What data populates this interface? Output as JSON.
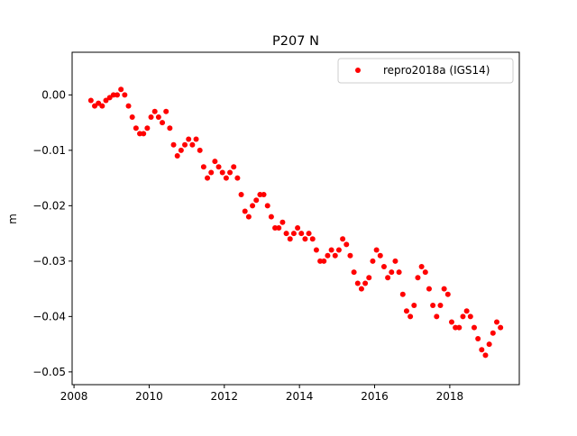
{
  "chart_data": {
    "type": "scatter",
    "title": "P207 N",
    "xlabel": "",
    "ylabel": "m",
    "xlim": [
      2007.95,
      2019.85
    ],
    "ylim": [
      -0.0523,
      0.0077
    ],
    "x_ticks": [
      "2008",
      "2010",
      "2012",
      "2014",
      "2016",
      "2018"
    ],
    "y_ticks": [
      "0.00",
      "−0.01",
      "−0.02",
      "−0.03",
      "−0.04",
      "−0.05"
    ],
    "grid": false,
    "legend": {
      "position": "top-right",
      "entries": [
        "repro2018a (IGS14)"
      ]
    },
    "series": [
      {
        "name": "repro2018a (IGS14)",
        "color": "#ff0000",
        "marker": "circle",
        "x": [
          2008.45,
          2008.55,
          2008.65,
          2008.75,
          2008.85,
          2008.95,
          2009.05,
          2009.15,
          2009.25,
          2009.35,
          2009.45,
          2009.55,
          2009.65,
          2009.75,
          2009.85,
          2009.95,
          2010.05,
          2010.15,
          2010.25,
          2010.35,
          2010.45,
          2010.55,
          2010.65,
          2010.75,
          2010.85,
          2010.95,
          2011.05,
          2011.15,
          2011.25,
          2011.35,
          2011.45,
          2011.55,
          2011.65,
          2011.75,
          2011.85,
          2011.95,
          2012.05,
          2012.15,
          2012.25,
          2012.35,
          2012.45,
          2012.55,
          2012.65,
          2012.75,
          2012.85,
          2012.95,
          2013.05,
          2013.15,
          2013.25,
          2013.35,
          2013.45,
          2013.55,
          2013.65,
          2013.75,
          2013.85,
          2013.95,
          2014.05,
          2014.15,
          2014.25,
          2014.35,
          2014.45,
          2014.55,
          2014.65,
          2014.75,
          2014.85,
          2014.95,
          2015.05,
          2015.15,
          2015.25,
          2015.35,
          2015.45,
          2015.55,
          2015.65,
          2015.75,
          2015.85,
          2015.95,
          2016.05,
          2016.15,
          2016.25,
          2016.35,
          2016.45,
          2016.55,
          2016.65,
          2016.75,
          2016.85,
          2016.95,
          2017.05,
          2017.15,
          2017.25,
          2017.35,
          2017.45,
          2017.55,
          2017.65,
          2017.75,
          2017.85,
          2017.95,
          2018.05,
          2018.15,
          2018.25,
          2018.35,
          2018.45,
          2018.55,
          2018.65,
          2018.75,
          2018.85,
          2018.95,
          2019.05,
          2019.15,
          2019.25,
          2019.35
        ],
        "y": [
          -0.001,
          -0.002,
          -0.0015,
          -0.002,
          -0.001,
          -0.0005,
          0.0,
          0.0,
          0.001,
          0.0,
          -0.002,
          -0.004,
          -0.006,
          -0.007,
          -0.007,
          -0.006,
          -0.004,
          -0.003,
          -0.004,
          -0.005,
          -0.003,
          -0.006,
          -0.009,
          -0.011,
          -0.01,
          -0.009,
          -0.008,
          -0.009,
          -0.008,
          -0.01,
          -0.013,
          -0.015,
          -0.014,
          -0.012,
          -0.013,
          -0.014,
          -0.015,
          -0.014,
          -0.013,
          -0.015,
          -0.018,
          -0.021,
          -0.022,
          -0.02,
          -0.019,
          -0.018,
          -0.018,
          -0.02,
          -0.022,
          -0.024,
          -0.024,
          -0.023,
          -0.025,
          -0.026,
          -0.025,
          -0.024,
          -0.025,
          -0.026,
          -0.025,
          -0.026,
          -0.028,
          -0.03,
          -0.03,
          -0.029,
          -0.028,
          -0.029,
          -0.028,
          -0.026,
          -0.027,
          -0.029,
          -0.032,
          -0.034,
          -0.035,
          -0.034,
          -0.033,
          -0.03,
          -0.028,
          -0.029,
          -0.031,
          -0.033,
          -0.032,
          -0.03,
          -0.032,
          -0.036,
          -0.039,
          -0.04,
          -0.038,
          -0.033,
          -0.031,
          -0.032,
          -0.035,
          -0.038,
          -0.04,
          -0.038,
          -0.035,
          -0.036,
          -0.041,
          -0.042,
          -0.042,
          -0.04,
          -0.039,
          -0.04,
          -0.042,
          -0.044,
          -0.046,
          -0.047,
          -0.045,
          -0.043,
          -0.041,
          -0.042
        ]
      }
    ]
  }
}
